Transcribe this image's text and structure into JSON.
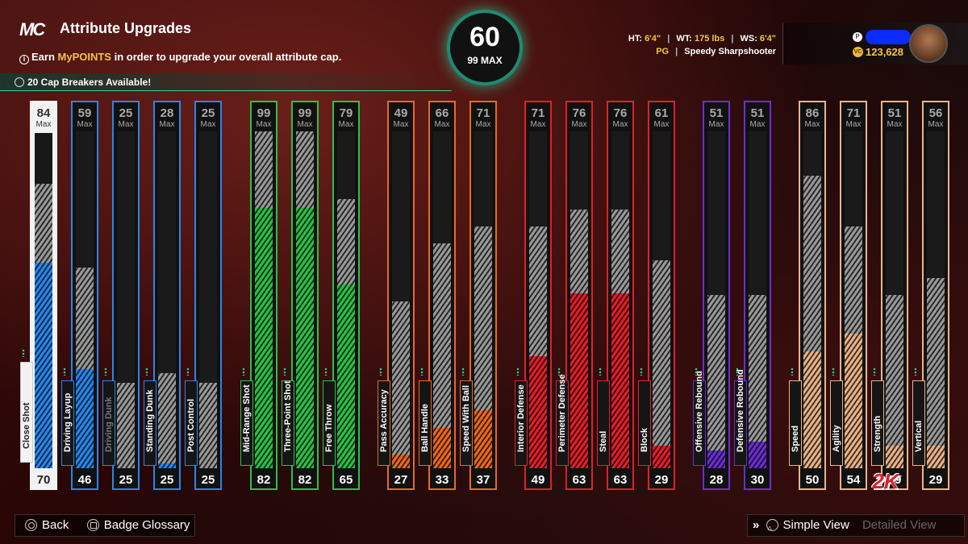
{
  "header": {
    "logo_text": "MC",
    "title": "Attribute Upgrades",
    "info_prefix": "Earn ",
    "info_highlight": "MyPOINTS",
    "info_suffix": " in order to upgrade your overall attribute cap.",
    "cap_breakers": "20 Cap Breakers Available!"
  },
  "overall": {
    "value": "60",
    "max_label": "99 MAX"
  },
  "player": {
    "ht_label": "HT:",
    "ht": "6'4\"",
    "wt_label": "WT:",
    "wt": "175 lbs",
    "ws_label": "WS:",
    "ws": "6'4\"",
    "position": "PG",
    "archetype": "Speedy Sharpshooter",
    "vc_balance": "123,628"
  },
  "colors": {
    "inside": "#2a86e8",
    "shooting": "#2fbf4a",
    "playmaking": "#e86a20",
    "defense": "#e0202c",
    "rebounding": "#6a2fd0",
    "physical": "#e8b48c",
    "accent": "#2bd1a0"
  },
  "max_label": "Max",
  "attributes": [
    {
      "name": "Close Shot",
      "max": 84,
      "current": 70,
      "group": "inside"
    },
    {
      "name": "Driving Layup",
      "max": 59,
      "current": 46,
      "group": "inside"
    },
    {
      "name": "Driving Dunk",
      "max": 25,
      "current": 25,
      "group": "inside"
    },
    {
      "name": "Standing Dunk",
      "max": 28,
      "current": 25,
      "group": "inside"
    },
    {
      "name": "Post Control",
      "max": 25,
      "current": 25,
      "group": "inside"
    },
    {
      "name": "Mid-Range Shot",
      "max": 99,
      "current": 82,
      "group": "shooting"
    },
    {
      "name": "Three-Point Shot",
      "max": 99,
      "current": 82,
      "group": "shooting"
    },
    {
      "name": "Free Throw",
      "max": 79,
      "current": 65,
      "group": "shooting"
    },
    {
      "name": "Pass Accuracy",
      "max": 49,
      "current": 27,
      "group": "playmaking"
    },
    {
      "name": "Ball Handle",
      "max": 66,
      "current": 33,
      "group": "playmaking"
    },
    {
      "name": "Speed With Ball",
      "max": 71,
      "current": 37,
      "group": "playmaking"
    },
    {
      "name": "Interior Defense",
      "max": 71,
      "current": 49,
      "group": "defense"
    },
    {
      "name": "Perimeter Defense",
      "max": 76,
      "current": 63,
      "group": "defense"
    },
    {
      "name": "Steal",
      "max": 76,
      "current": 63,
      "group": "defense"
    },
    {
      "name": "Block",
      "max": 61,
      "current": 29,
      "group": "defense"
    },
    {
      "name": "Offensive Rebound",
      "max": 51,
      "current": 28,
      "group": "rebounding"
    },
    {
      "name": "Defensive Rebound",
      "max": 51,
      "current": 30,
      "group": "rebounding"
    },
    {
      "name": "Speed",
      "max": 86,
      "current": 50,
      "group": "physical"
    },
    {
      "name": "Agility",
      "max": 71,
      "current": 54,
      "group": "physical"
    },
    {
      "name": "Strength",
      "max": 51,
      "current": 29,
      "group": "physical"
    },
    {
      "name": "Vertical",
      "max": 56,
      "current": 29,
      "group": "physical"
    }
  ],
  "footer": {
    "back": "Back",
    "badge_glossary": "Badge Glossary",
    "simple_view": "Simple View",
    "detailed_view": "Detailed View"
  },
  "brand_logo": "2K"
}
